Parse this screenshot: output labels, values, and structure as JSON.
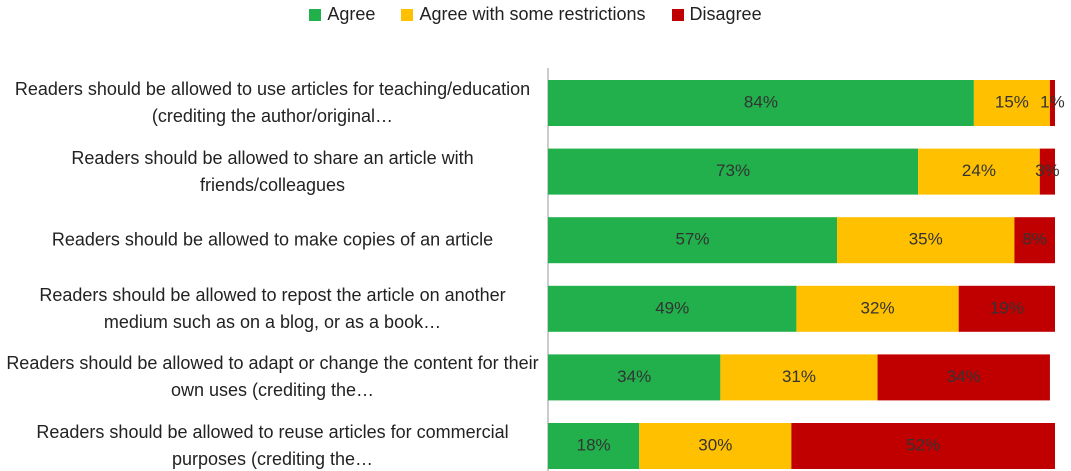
{
  "chart_data": {
    "type": "stacked-barh",
    "categories": [
      "Readers should be allowed to use articles for teaching/education (crediting the author/original…",
      "Readers should be allowed to share an article with friends/colleagues",
      "Readers should be allowed to make copies of an article",
      "Readers should be allowed to repost the article on another medium such as on a blog, or as a book…",
      "Readers should be allowed to adapt or change the content for their own uses (crediting the…",
      "Readers should be allowed to reuse articles for commercial purposes (crediting the…"
    ],
    "series": [
      {
        "name": "Agree",
        "color": "#21b04b",
        "values": [
          84,
          73,
          57,
          49,
          34,
          18
        ],
        "value_labels": [
          "84%",
          "73%",
          "57%",
          "49%",
          "34%",
          "18%"
        ]
      },
      {
        "name": "Agree with some restrictions",
        "color": "#ffc000",
        "values": [
          15,
          24,
          35,
          32,
          31,
          30
        ],
        "value_labels": [
          "15%",
          "24%",
          "35%",
          "32%",
          "31%",
          "30%"
        ]
      },
      {
        "name": "Disagree",
        "color": "#c00000",
        "values": [
          1,
          3,
          8,
          19,
          34,
          52
        ],
        "value_labels": [
          "1%",
          "3%",
          "8%",
          "19%",
          "34%",
          "52%"
        ]
      }
    ],
    "xlim": [
      0,
      100
    ],
    "legend": "top"
  }
}
